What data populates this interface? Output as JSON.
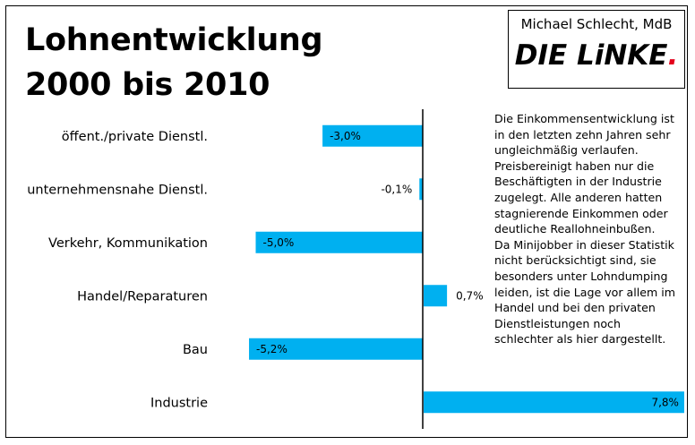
{
  "title_line1": "Lohnentwicklung",
  "title_line2": "2000 bis 2010",
  "brand": {
    "person": "Michael Schlecht, MdB",
    "logo_text": "DIE LiNKE",
    "logo_dot": "."
  },
  "note": "Die Einkommensentwicklung ist\nin den letzten zehn Jahren sehr\nungleichmäßig verlaufen.\nPreisbereinigt haben nur die\nBeschäftigten in der Industrie\nzugelegt. Alle anderen hatten\nstagnierende Einkommen oder\ndeutliche Reallohneinbußen.\nDa Minijobber in dieser Statistik\nnicht berücksichtigt sind, sie\nbesonders unter Lohndumping\nleiden, ist die Lage vor allem im\nHandel und bei den privaten\nDienstleistungen noch\nschlechter als hier dargestellt.",
  "chart_data": {
    "type": "bar",
    "orientation": "horizontal",
    "categories": [
      "öffent./private Dienstl.",
      "unternehmensnahe Dienstl.",
      "Verkehr, Kommunikation",
      "Handel/Reparaturen",
      "Bau",
      "Industrie"
    ],
    "values": [
      -3.0,
      -0.1,
      -5.0,
      0.7,
      -5.2,
      7.8
    ],
    "value_labels": [
      "-3,0%",
      "-0,1%",
      "-5,0%",
      "0,7%",
      "-5,2%",
      "7,8%"
    ],
    "bar_color": "#00b0f0",
    "grid": false
  }
}
